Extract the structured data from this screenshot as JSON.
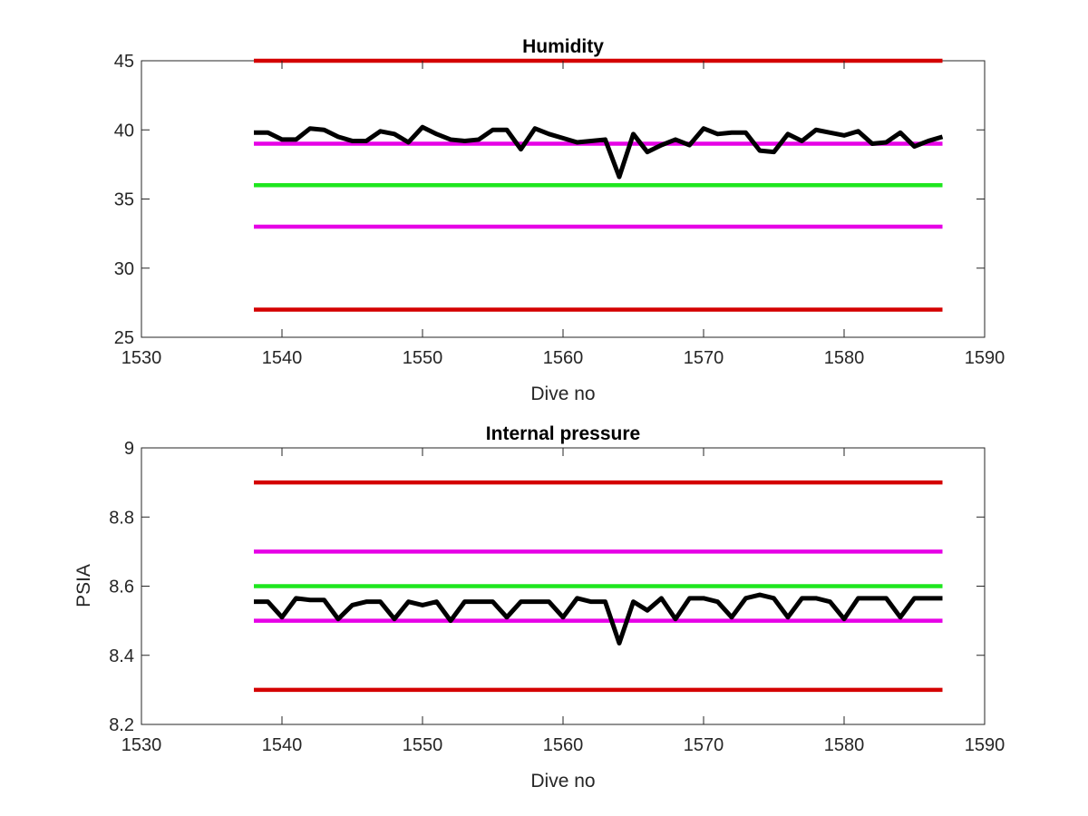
{
  "chart_data": [
    {
      "type": "line",
      "title": "Humidity",
      "xlabel": "Dive no",
      "ylabel": "",
      "xlim": [
        1530,
        1590
      ],
      "ylim": [
        25,
        45
      ],
      "xticks": [
        1530,
        1540,
        1550,
        1560,
        1570,
        1580,
        1590
      ],
      "yticks": [
        25,
        30,
        35,
        40,
        45
      ],
      "grid": false,
      "reference_lines": [
        {
          "y": 45,
          "color": "#d40000"
        },
        {
          "y": 39,
          "color": "#e600e6"
        },
        {
          "y": 36,
          "color": "#1ee61e"
        },
        {
          "y": 33,
          "color": "#e600e6"
        },
        {
          "y": 27,
          "color": "#d40000"
        }
      ],
      "reference_x_range": [
        1538,
        1587
      ],
      "series": [
        {
          "color": "#000000",
          "x": [
            1538,
            1539,
            1540,
            1541,
            1542,
            1543,
            1544,
            1545,
            1546,
            1547,
            1548,
            1549,
            1550,
            1551,
            1552,
            1553,
            1554,
            1555,
            1556,
            1557,
            1558,
            1559,
            1560,
            1561,
            1562,
            1563,
            1564,
            1565,
            1566,
            1567,
            1568,
            1569,
            1570,
            1571,
            1572,
            1573,
            1574,
            1575,
            1576,
            1577,
            1578,
            1579,
            1580,
            1581,
            1582,
            1583,
            1584,
            1585,
            1586,
            1587
          ],
          "values": [
            39.8,
            39.8,
            39.3,
            39.3,
            40.1,
            40.0,
            39.5,
            39.2,
            39.2,
            39.9,
            39.7,
            39.1,
            40.2,
            39.7,
            39.3,
            39.2,
            39.3,
            40.0,
            40.0,
            38.6,
            40.1,
            39.7,
            39.4,
            39.1,
            39.2,
            39.3,
            36.6,
            39.7,
            38.4,
            38.9,
            39.3,
            38.9,
            40.1,
            39.7,
            39.8,
            39.8,
            38.5,
            38.4,
            39.7,
            39.2,
            40.0,
            39.8,
            39.6,
            39.9,
            39.0,
            39.1,
            39.8,
            38.8,
            39.2,
            39.5
          ]
        }
      ]
    },
    {
      "type": "line",
      "title": "Internal pressure",
      "xlabel": "Dive no",
      "ylabel": "PSIA",
      "xlim": [
        1530,
        1590
      ],
      "ylim": [
        8.2,
        9
      ],
      "xticks": [
        1530,
        1540,
        1550,
        1560,
        1570,
        1580,
        1590
      ],
      "yticks": [
        8.2,
        8.4,
        8.6,
        8.8,
        9
      ],
      "grid": false,
      "reference_lines": [
        {
          "y": 8.9,
          "color": "#d40000"
        },
        {
          "y": 8.7,
          "color": "#e600e6"
        },
        {
          "y": 8.6,
          "color": "#1ee61e"
        },
        {
          "y": 8.5,
          "color": "#e600e6"
        },
        {
          "y": 8.3,
          "color": "#d40000"
        }
      ],
      "reference_x_range": [
        1538,
        1587
      ],
      "series": [
        {
          "color": "#000000",
          "x": [
            1538,
            1539,
            1540,
            1541,
            1542,
            1543,
            1544,
            1545,
            1546,
            1547,
            1548,
            1549,
            1550,
            1551,
            1552,
            1553,
            1554,
            1555,
            1556,
            1557,
            1558,
            1559,
            1560,
            1561,
            1562,
            1563,
            1564,
            1565,
            1566,
            1567,
            1568,
            1569,
            1570,
            1571,
            1572,
            1573,
            1574,
            1575,
            1576,
            1577,
            1578,
            1579,
            1580,
            1581,
            1582,
            1583,
            1584,
            1585,
            1586,
            1587
          ],
          "values": [
            8.555,
            8.555,
            8.51,
            8.565,
            8.56,
            8.56,
            8.505,
            8.545,
            8.555,
            8.555,
            8.505,
            8.555,
            8.545,
            8.555,
            8.5,
            8.555,
            8.555,
            8.555,
            8.51,
            8.555,
            8.555,
            8.555,
            8.51,
            8.565,
            8.555,
            8.555,
            8.435,
            8.555,
            8.53,
            8.565,
            8.505,
            8.565,
            8.565,
            8.555,
            8.51,
            8.565,
            8.575,
            8.565,
            8.51,
            8.565,
            8.565,
            8.555,
            8.505,
            8.565,
            8.565,
            8.565,
            8.51,
            8.565,
            8.565,
            8.565
          ]
        }
      ]
    }
  ]
}
